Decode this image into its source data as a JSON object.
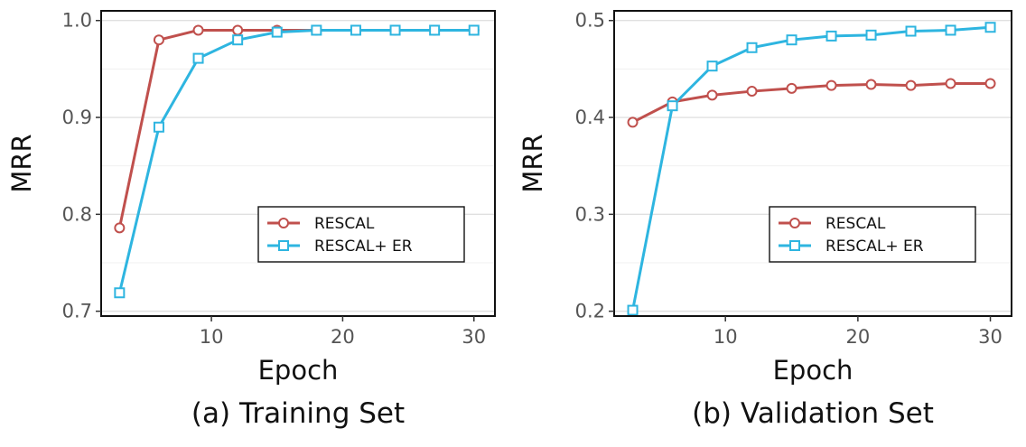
{
  "chart_data": [
    {
      "type": "line",
      "panel_label": "(a)",
      "title": "Training Set",
      "xlabel": "Epoch",
      "ylabel": "MRR",
      "xlim": [
        1.6,
        31.6
      ],
      "ylim": [
        0.695,
        1.01
      ],
      "xticks": [
        10,
        20,
        30
      ],
      "yticks": [
        0.7,
        0.8,
        0.9,
        1.0
      ],
      "xtick_labels": [
        "10",
        "20",
        "30"
      ],
      "ytick_labels": [
        "0.7",
        "0.8",
        "0.9",
        "1.0"
      ],
      "grid": true,
      "legend_position": "bottom-right",
      "x": [
        3,
        6,
        9,
        12,
        15,
        18,
        21,
        24,
        27,
        30
      ],
      "series": [
        {
          "name": "RESCAL",
          "color": "#c0504d",
          "marker": "circle",
          "values": [
            0.786,
            0.98,
            0.99,
            0.99,
            0.99,
            0.99,
            0.99,
            0.99,
            0.99,
            0.99
          ]
        },
        {
          "name": "RESCAL+ ER",
          "color": "#2eb5e0",
          "marker": "square",
          "values": [
            0.719,
            0.89,
            0.961,
            0.98,
            0.988,
            0.99,
            0.99,
            0.99,
            0.99,
            0.99
          ]
        }
      ]
    },
    {
      "type": "line",
      "panel_label": "(b)",
      "title": "Validation Set",
      "xlabel": "Epoch",
      "ylabel": "MRR",
      "xlim": [
        1.6,
        31.6
      ],
      "ylim": [
        0.195,
        0.51
      ],
      "xticks": [
        10,
        20,
        30
      ],
      "yticks": [
        0.2,
        0.3,
        0.4,
        0.5
      ],
      "xtick_labels": [
        "10",
        "20",
        "30"
      ],
      "ytick_labels": [
        "0.2",
        "0.3",
        "0.4",
        "0.5"
      ],
      "grid": true,
      "legend_position": "bottom-right",
      "x": [
        3,
        6,
        9,
        12,
        15,
        18,
        21,
        24,
        27,
        30
      ],
      "series": [
        {
          "name": "RESCAL",
          "color": "#c0504d",
          "marker": "circle",
          "values": [
            0.395,
            0.416,
            0.423,
            0.427,
            0.43,
            0.433,
            0.434,
            0.433,
            0.435,
            0.435
          ]
        },
        {
          "name": "RESCAL+ ER",
          "color": "#2eb5e0",
          "marker": "square",
          "values": [
            0.201,
            0.412,
            0.453,
            0.472,
            0.48,
            0.484,
            0.485,
            0.489,
            0.49,
            0.493
          ]
        }
      ]
    }
  ]
}
